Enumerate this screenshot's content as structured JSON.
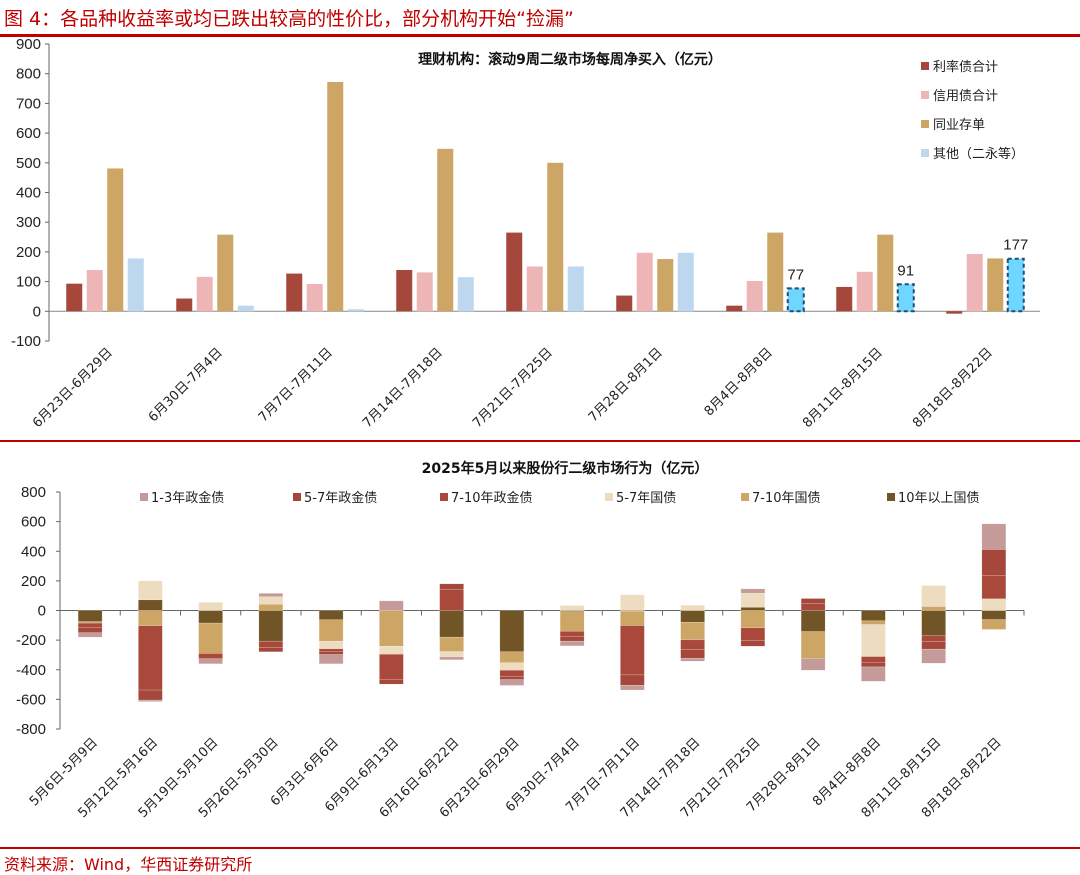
{
  "figure_title": "图 4：各品种收益率或均已跌出较高的性价比，部分机构开始“捡漏”",
  "source": "资料来源：Wind，华西证券研究所",
  "chart_data": [
    {
      "type": "bar",
      "title": "理财机构：滚动9周二级市场每周净买入（亿元）",
      "categories": [
        "6月23日-6月29日",
        "6月30日-7月4日",
        "7月7日-7月11日",
        "7月14日-7月18日",
        "7月21日-7月25日",
        "7月28日-8月1日",
        "8月4日-8月8日",
        "8月11日-8月15日",
        "8月18日-8月22日"
      ],
      "series": [
        {
          "name": "利率债合计",
          "color": "#A5473A",
          "values": [
            93,
            43,
            127,
            139,
            265,
            53,
            19,
            82,
            -8
          ]
        },
        {
          "name": "信用债合计",
          "color": "#EDB5B5",
          "values": [
            139,
            116,
            92,
            131,
            151,
            197,
            102,
            133,
            193
          ]
        },
        {
          "name": "同业存单",
          "color": "#CDA564",
          "values": [
            481,
            258,
            772,
            547,
            500,
            176,
            265,
            258,
            178
          ]
        },
        {
          "name": "其他（二永等）",
          "color": "#BDD7EE",
          "values": [
            178,
            19,
            7,
            115,
            151,
            197,
            77,
            91,
            177
          ]
        }
      ],
      "highlight": {
        "series": "其他（二永等）",
        "color": "#6FD6FF",
        "border": "#1F4E79",
        "categories": [
          "8月4日-8月8日",
          "8月11日-8月15日",
          "8月18日-8月22日"
        ],
        "labels": [
          "77",
          "91",
          "177"
        ]
      },
      "ylim": [
        -100,
        900
      ],
      "yticks": [
        -100,
        0,
        100,
        200,
        300,
        400,
        500,
        600,
        700,
        800,
        900
      ],
      "legend": "right"
    },
    {
      "type": "bar",
      "stacked": true,
      "title": "2025年5月以来股份行二级市场行为（亿元）",
      "categories": [
        "5月6日-5月9日",
        "5月12日-5月16日",
        "5月19日-5月10日",
        "5月26日-5月30日",
        "6月3日-6月6日",
        "6月9日-6月13日",
        "6月16日-6月22日",
        "6月23日-6月29日",
        "6月30日-7月4日",
        "7月7日-7月11日",
        "7月14日-7月18日",
        "7月21日-7月25日",
        "7月28日-8月1日",
        "8月4日-8月8日",
        "8月11日-8月15日",
        "8月18日-8月22日"
      ],
      "series": [
        {
          "name": "1-3年政金债",
          "color": "#C59B9A",
          "values": [
            -30,
            -10,
            -34,
            23,
            -63,
            65,
            -20,
            -40,
            -32,
            -32,
            -20,
            29,
            -79,
            -97,
            -95,
            173
          ]
        },
        {
          "name": "5-7年政金债",
          "color": "#A5473A",
          "values": [
            -35,
            -68,
            0,
            -30,
            -20,
            -30,
            40,
            -20,
            -30,
            -70,
            -60,
            -40,
            35,
            -30,
            -50,
            175
          ]
        },
        {
          "name": "7-10年政金债",
          "color": "#A9493B",
          "values": [
            -30,
            -434,
            -36,
            -42,
            -18,
            -172,
            140,
            -43,
            -37,
            -333,
            -64,
            -84,
            46,
            -40,
            -40,
            158
          ]
        },
        {
          "name": "5-7年国债",
          "color": "#EEDCC0",
          "values": [
            0,
            128,
            56,
            50,
            -52,
            -54,
            -36,
            -50,
            34,
            106,
            36,
            95,
            0,
            -216,
            142,
            79
          ]
        },
        {
          "name": "7-10年国债",
          "color": "#CDA564",
          "values": [
            -10,
            -103,
            -205,
            43,
            -144,
            -241,
            -97,
            -74,
            -133,
            -97,
            -119,
            -117,
            -182,
            -25,
            27,
            -67
          ]
        },
        {
          "name": "10年以上国债",
          "color": "#715527",
          "values": [
            -75,
            72,
            -85,
            -207,
            -63,
            0,
            -180,
            -279,
            -7,
            -5,
            -79,
            22,
            -142,
            -70,
            -171,
            -61
          ]
        }
      ],
      "ylim": [
        -800,
        800
      ],
      "yticks": [
        -800,
        -600,
        -400,
        -200,
        0,
        200,
        400,
        600,
        800
      ],
      "legend": "top"
    }
  ]
}
